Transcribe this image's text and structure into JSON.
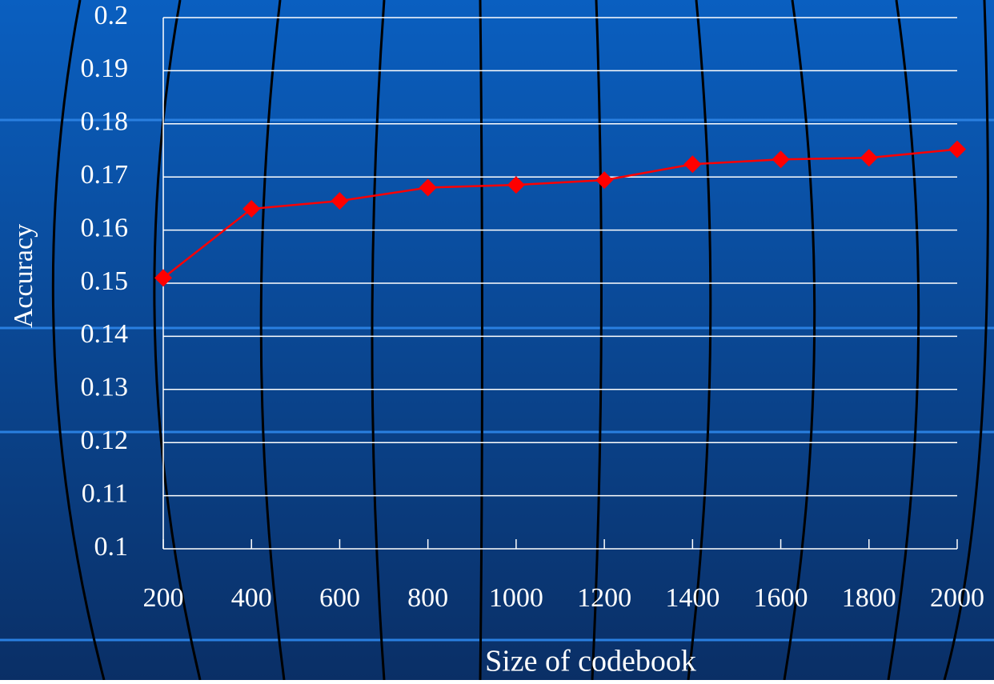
{
  "chart_data": {
    "type": "line",
    "x_label": "Size of codebook",
    "y_label": "Accuracy",
    "x": [
      200,
      400,
      600,
      800,
      1000,
      1200,
      1400,
      1600,
      1800,
      2000
    ],
    "xlim": [
      200,
      2000
    ],
    "xticks": [
      200,
      400,
      600,
      800,
      1000,
      1200,
      1400,
      1600,
      1800,
      2000
    ],
    "series": [
      {
        "color": "#ff0000",
        "values": [
          0.151,
          0.164,
          0.1655,
          0.168,
          0.1685,
          0.1694,
          0.1724,
          0.1733,
          0.1736,
          0.1752
        ]
      }
    ],
    "ylim": [
      0.1,
      0.2
    ],
    "yticks": [
      0.1,
      0.11,
      0.12,
      0.13,
      0.14,
      0.15,
      0.16,
      0.17,
      0.18,
      0.19,
      0.2
    ],
    "grid": true
  }
}
